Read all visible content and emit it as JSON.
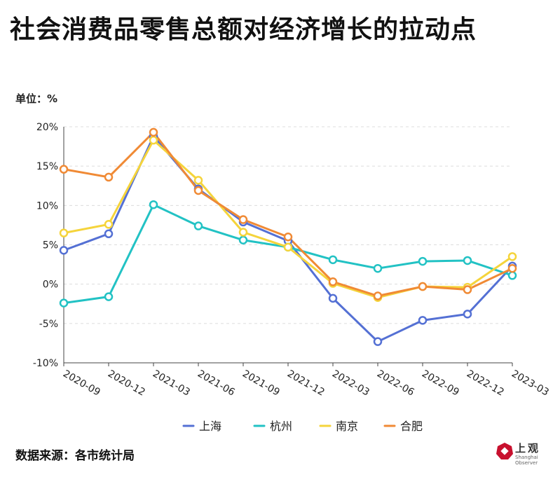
{
  "title": "社会消费品零售总额对经济增长的拉动点",
  "unit_label": "单位：%",
  "source": "数据来源：各市统计局",
  "logo": {
    "name": "上观",
    "subtitle": "Shanghai Observer"
  },
  "colors": {
    "上海": "#5470d4",
    "杭州": "#22c2c4",
    "南京": "#f5d43b",
    "合肥": "#f08a35"
  },
  "chart_data": {
    "type": "line",
    "categories": [
      "2020-09",
      "2020-12",
      "2021-03",
      "2021-06",
      "2021-09",
      "2021-12",
      "2022-03",
      "2022-06",
      "2022-09",
      "2022-12",
      "2023-03"
    ],
    "ylim": [
      -10,
      20
    ],
    "yticks": [
      -10,
      -5,
      0,
      5,
      10,
      15,
      20
    ],
    "ytick_labels": [
      "-10%",
      "-5%",
      "0%",
      "5%",
      "10%",
      "15%",
      "20%"
    ],
    "grid": true,
    "legend_position": "bottom",
    "series": [
      {
        "name": "上海",
        "values": [
          4.3,
          6.4,
          18.8,
          12.1,
          7.9,
          5.5,
          -1.8,
          -7.3,
          -4.6,
          -3.8,
          2.3
        ]
      },
      {
        "name": "杭州",
        "values": [
          -2.4,
          -1.6,
          10.1,
          7.4,
          5.6,
          4.7,
          3.1,
          2.0,
          2.9,
          3.0,
          1.1
        ]
      },
      {
        "name": "南京",
        "values": [
          6.5,
          7.6,
          18.3,
          13.2,
          6.6,
          4.7,
          0.1,
          -1.7,
          -0.3,
          -0.4,
          3.5
        ]
      },
      {
        "name": "合肥",
        "values": [
          14.6,
          13.6,
          19.3,
          11.9,
          8.2,
          6.0,
          0.3,
          -1.5,
          -0.3,
          -0.7,
          2.0
        ]
      }
    ]
  }
}
